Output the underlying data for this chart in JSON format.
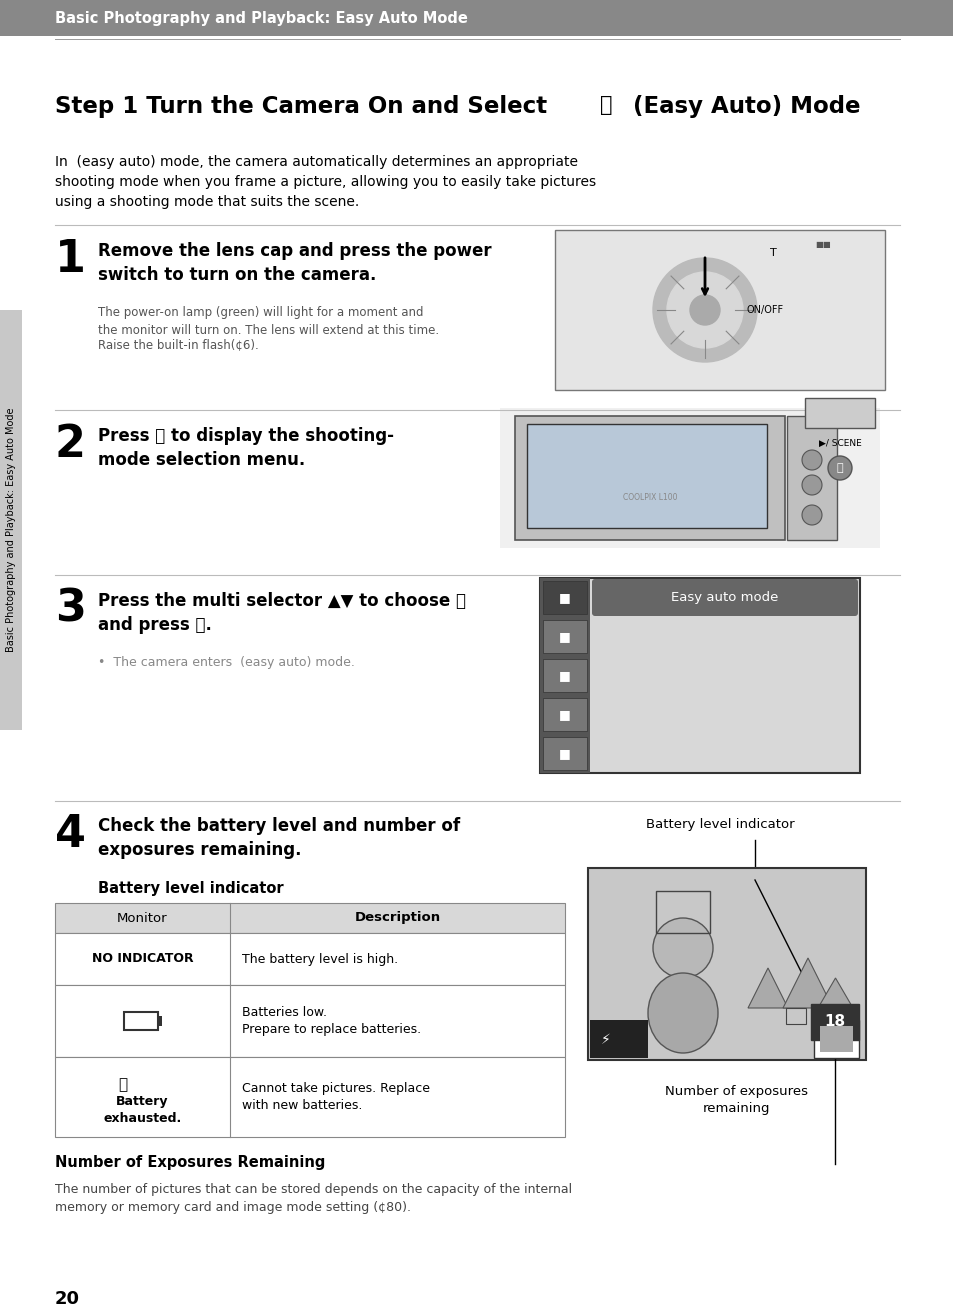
{
  "page_bg": "#ffffff",
  "header_bg": "#888888",
  "header_text": "Basic Photography and Playback: Easy Auto Mode",
  "header_text_color": "#ffffff",
  "title_text": "Step 1 Turn the Camera On and Select  (Easy Auto) Mode",
  "title_color": "#000000",
  "intro_text": "In  (easy auto) mode, the camera automatically determines an appropriate\nshooting mode when you frame a picture, allowing you to easily take pictures\nusing a shooting mode that suits the scene.",
  "step1_num": "1",
  "step1_head": "Remove the lens cap and press the power\nswitch to turn on the camera.",
  "step1_body1": "The power-on lamp (green) will light for a moment and\nthe monitor will turn on. The lens will extend at this time.",
  "step1_body2": "Raise the built-in flash(¢6).",
  "step2_num": "2",
  "step2_head": "Press  to display the shooting-\nmode selection menu.",
  "step3_num": "3",
  "step3_head": "Press the multi selector ▲▼ to choose \nand press Ⓜ.",
  "step3_body": "•  The camera enters  (easy auto) mode.",
  "step3_menu_label": "Easy auto mode",
  "step4_num": "4",
  "step4_head": "Check the battery level and number of\nexposures remaining.",
  "step4_sub": "Battery level indicator",
  "battery_label_right": "Battery level indicator",
  "table_header": [
    "Monitor",
    "Description"
  ],
  "table_row0_col0": "NO INDICATOR",
  "table_row0_col1": "The battery level is high.",
  "table_row1_col0": "⎓",
  "table_row1_col1": "Batteries low.\nPrepare to replace batteries.",
  "table_row2_col0_line1": "ⓘ",
  "table_row2_col0_line2": "Battery\nexhausted.",
  "table_row2_col1": "Cannot take pictures. Replace\nwith new batteries.",
  "exposures_label": "Number of exposures\nremaining",
  "section_head": "Number of Exposures Remaining",
  "section_body": "The number of pictures that can be stored depends on the capacity of the internal\nmemory or memory card and image mode setting (¢80).",
  "page_num": "20",
  "sidebar_text": "Basic Photography and Playback: Easy Auto Mode",
  "sidebar_bg": "#c8c8c8",
  "header_bg_color": "#888888",
  "divider_color": "#bbbbbb",
  "table_header_bg": "#d8d8d8",
  "table_border_color": "#888888"
}
